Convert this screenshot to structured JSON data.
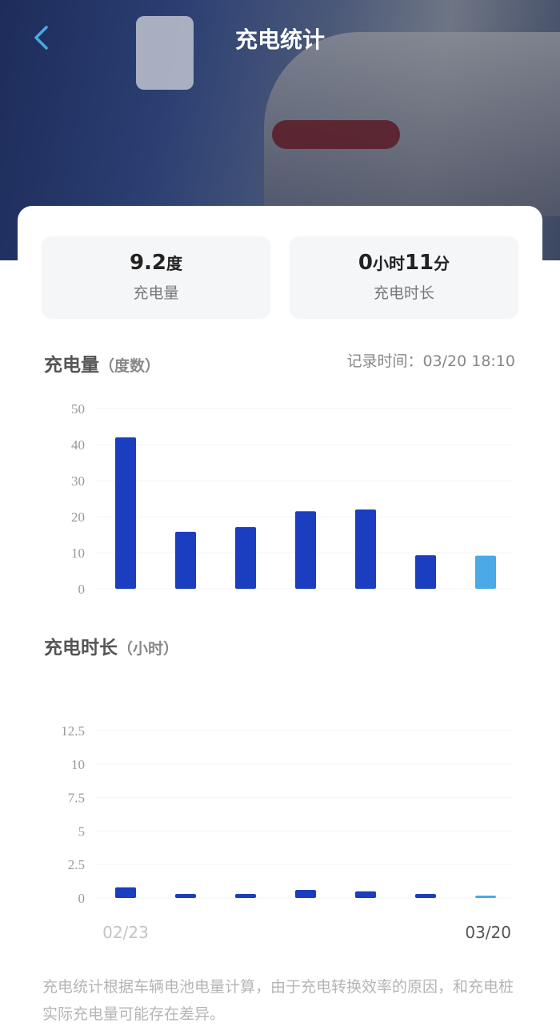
{
  "header": {
    "title": "充电统计",
    "back_icon": "chevron-left-icon"
  },
  "stats": [
    {
      "value": "9.2",
      "unit": "度",
      "label": "充电量"
    },
    {
      "value_h": "0",
      "unit_h": "小时",
      "value_m": "11",
      "unit_m": "分",
      "label": "充电时长"
    }
  ],
  "energy_section": {
    "title": "充电量",
    "unit": "（度数）",
    "record_time": "记录时间：03/20 18:10"
  },
  "duration_section": {
    "title": "充电时长",
    "unit": "（小时）"
  },
  "chart_data": [
    {
      "type": "bar",
      "ylim": [
        0,
        50
      ],
      "yticks": [
        "0",
        "10",
        "20",
        "30",
        "40",
        "50"
      ],
      "values": [
        42,
        15.8,
        17.1,
        21.5,
        22,
        9.3,
        9.2
      ],
      "colors": [
        "#1a3ebf",
        "#1a3ebf",
        "#1a3ebf",
        "#1a3ebf",
        "#1a3ebf",
        "#1a3ebf",
        "#4aa9e6"
      ]
    },
    {
      "type": "bar",
      "ylim": [
        0,
        12.5
      ],
      "yticks": [
        "0",
        "2.5",
        "5",
        "7.5",
        "10",
        "12.5"
      ],
      "values": [
        0.8,
        0.3,
        0.3,
        0.6,
        0.5,
        0.3,
        0.18
      ],
      "colors": [
        "#1a3ebf",
        "#1a3ebf",
        "#1a3ebf",
        "#1a3ebf",
        "#1a3ebf",
        "#1a3ebf",
        "#4aa9e6"
      ],
      "x_start_label": "02/23",
      "x_end_label": "03/20"
    }
  ],
  "footnote": "充电统计根据车辆电池电量计算，由于充电转换效率的原因，和充电桩实际充电量可能存在差异。"
}
